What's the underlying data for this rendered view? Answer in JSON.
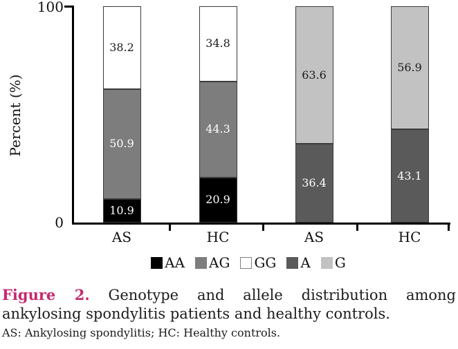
{
  "figure_caption": {
    "label": "Figure 2.",
    "title_rest_line1": "Genotype and allele distribution among",
    "title_line2": "ankylosing spondylitis patients and healthy controls.",
    "footnote": "AS: Ankylosing spondylitis; HC: Healthy controls.",
    "label_color": "#c52a6e"
  },
  "chart_data": {
    "type": "bar",
    "stacked": true,
    "title": "",
    "xlabel": "",
    "ylabel": "Percent (%)",
    "ylim": [
      0,
      100
    ],
    "ytick_labels": [
      "0",
      "100"
    ],
    "grid": false,
    "legend_position": "bottom",
    "categories": [
      "AS",
      "HC",
      "AS",
      "HC"
    ],
    "series": [
      {
        "name": "AA",
        "color": "#000000",
        "label_color": "#ffffff",
        "values": [
          10.9,
          20.9,
          null,
          null
        ]
      },
      {
        "name": "AG",
        "color": "#7d7d7d",
        "label_color": "#ffffff",
        "values": [
          50.9,
          44.3,
          null,
          null
        ]
      },
      {
        "name": "GG",
        "color": "#ffffff",
        "label_color": "#1a1a1a",
        "values": [
          38.2,
          34.8,
          null,
          null
        ]
      },
      {
        "name": "A",
        "color": "#5a5a5a",
        "label_color": "#ffffff",
        "values": [
          null,
          null,
          36.4,
          43.1
        ]
      },
      {
        "name": "G",
        "color": "#c2c2c2",
        "label_color": "#1a1a1a",
        "values": [
          null,
          null,
          63.6,
          56.9
        ]
      }
    ]
  }
}
